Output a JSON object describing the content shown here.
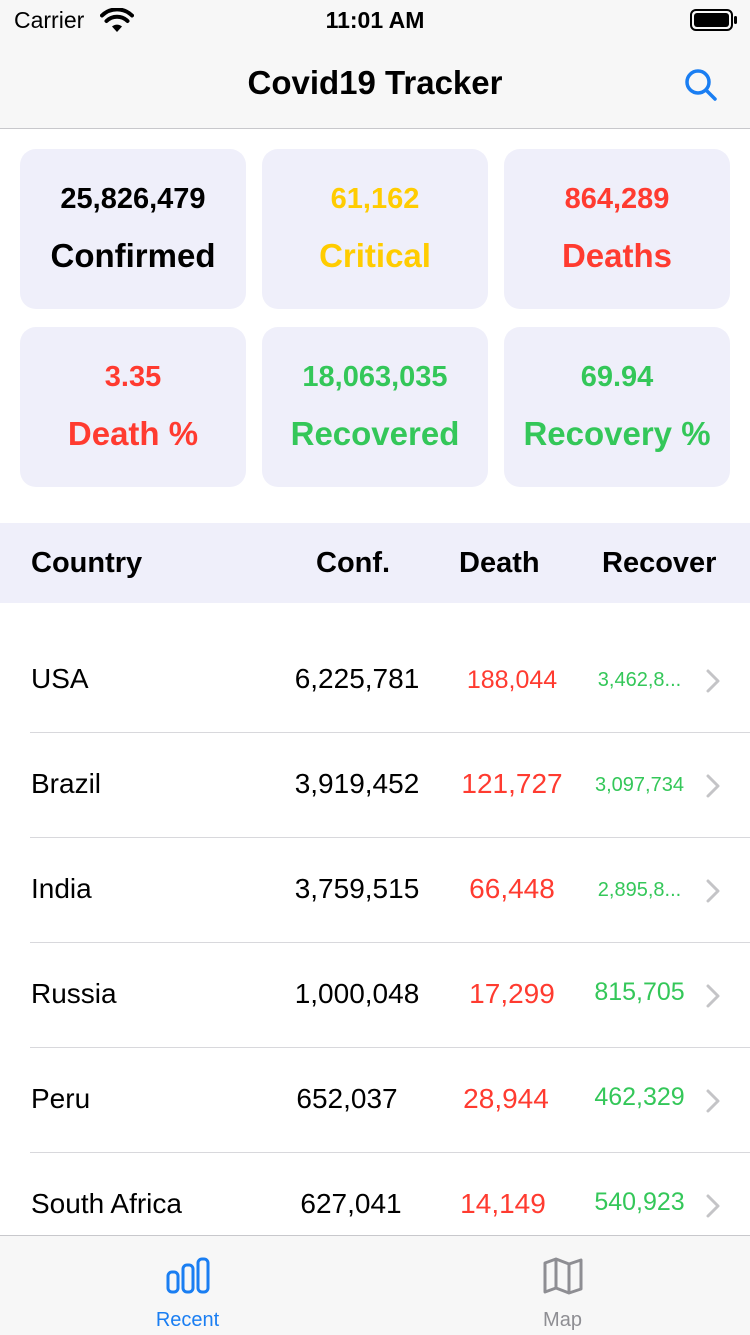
{
  "status_bar": {
    "carrier": "Carrier",
    "time": "11:01 AM"
  },
  "nav": {
    "title": "Covid19 Tracker",
    "search_icon": "search-icon"
  },
  "stats": [
    {
      "value": "25,826,479",
      "label": "Confirmed",
      "color": "#000000"
    },
    {
      "value": "61,162",
      "label": "Critical",
      "color": "#ffcc00"
    },
    {
      "value": "864,289",
      "label": "Deaths",
      "color": "#ff3b30"
    },
    {
      "value": "3.35",
      "label": "Death %",
      "color": "#ff3b30"
    },
    {
      "value": "18,063,035",
      "label": "Recovered",
      "color": "#34c759"
    },
    {
      "value": "69.94",
      "label": "Recovery %",
      "color": "#34c759"
    }
  ],
  "table": {
    "headers": {
      "country": "Country",
      "conf": "Conf.",
      "death": "Death",
      "recover": "Recover"
    },
    "rows": [
      {
        "country": "USA",
        "conf": "6,225,781",
        "death": "188,044",
        "recover": "3,462,8..."
      },
      {
        "country": "Brazil",
        "conf": "3,919,452",
        "death": "121,727",
        "recover": "3,097,734"
      },
      {
        "country": "India",
        "conf": "3,759,515",
        "death": "66,448",
        "recover": "2,895,8..."
      },
      {
        "country": "Russia",
        "conf": "1,000,048",
        "death": "17,299",
        "recover": "815,705"
      },
      {
        "country": "Peru",
        "conf": "652,037",
        "death": "28,944",
        "recover": "462,329"
      },
      {
        "country": "South Africa",
        "conf": "627,041",
        "death": "14,149",
        "recover": "540,923"
      }
    ]
  },
  "tabs": [
    {
      "label": "Recent",
      "icon": "bar-chart-icon",
      "active": true,
      "color": "#1a7ef2"
    },
    {
      "label": "Map",
      "icon": "map-icon",
      "active": false,
      "color": "#8e8e93"
    }
  ]
}
